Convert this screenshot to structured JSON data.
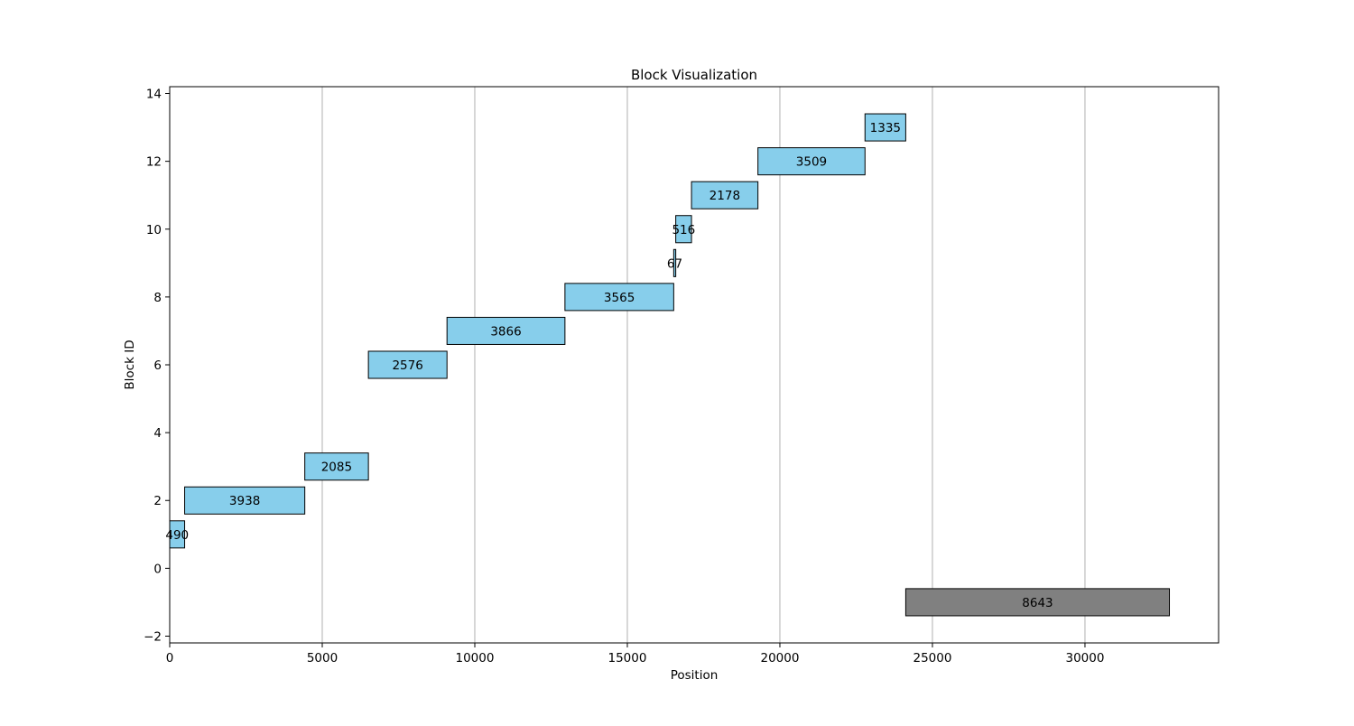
{
  "chart_data": {
    "type": "bar",
    "orientation": "horizontal-range",
    "title": "Block Visualization",
    "xlabel": "Position",
    "ylabel": "Block ID",
    "xlim": [
      0,
      34380
    ],
    "ylim": [
      -2.2,
      14.2
    ],
    "xticks": [
      0,
      5000,
      10000,
      15000,
      20000,
      25000,
      30000
    ],
    "yticks": [
      -2,
      0,
      2,
      4,
      6,
      8,
      10,
      12,
      14
    ],
    "grid": "vertical",
    "legend": "none",
    "colors": {
      "block": "#87ceeb",
      "free": "#808080",
      "edge": "#000000",
      "grid": "#b0b0b0"
    },
    "blocks": [
      {
        "id": 1,
        "start": 0,
        "size": 490,
        "label": "490",
        "kind": "block"
      },
      {
        "id": 2,
        "start": 490,
        "size": 3938,
        "label": "3938",
        "kind": "block"
      },
      {
        "id": 3,
        "start": 4428,
        "size": 2085,
        "label": "2085",
        "kind": "block"
      },
      {
        "id": 6,
        "start": 6513,
        "size": 2576,
        "label": "2576",
        "kind": "block"
      },
      {
        "id": 7,
        "start": 9089,
        "size": 3866,
        "label": "3866",
        "kind": "block"
      },
      {
        "id": 8,
        "start": 12955,
        "size": 3565,
        "label": "3565",
        "kind": "block"
      },
      {
        "id": 9,
        "start": 16520,
        "size": 67,
        "label": "67",
        "kind": "block"
      },
      {
        "id": 10,
        "start": 16587,
        "size": 516,
        "label": "516",
        "kind": "block"
      },
      {
        "id": 11,
        "start": 17103,
        "size": 2178,
        "label": "2178",
        "kind": "block"
      },
      {
        "id": 12,
        "start": 19281,
        "size": 3509,
        "label": "3509",
        "kind": "block"
      },
      {
        "id": 13,
        "start": 22790,
        "size": 1335,
        "label": "1335",
        "kind": "block"
      },
      {
        "id": -1,
        "start": 24125,
        "size": 8643,
        "label": "8643",
        "kind": "free"
      }
    ]
  }
}
